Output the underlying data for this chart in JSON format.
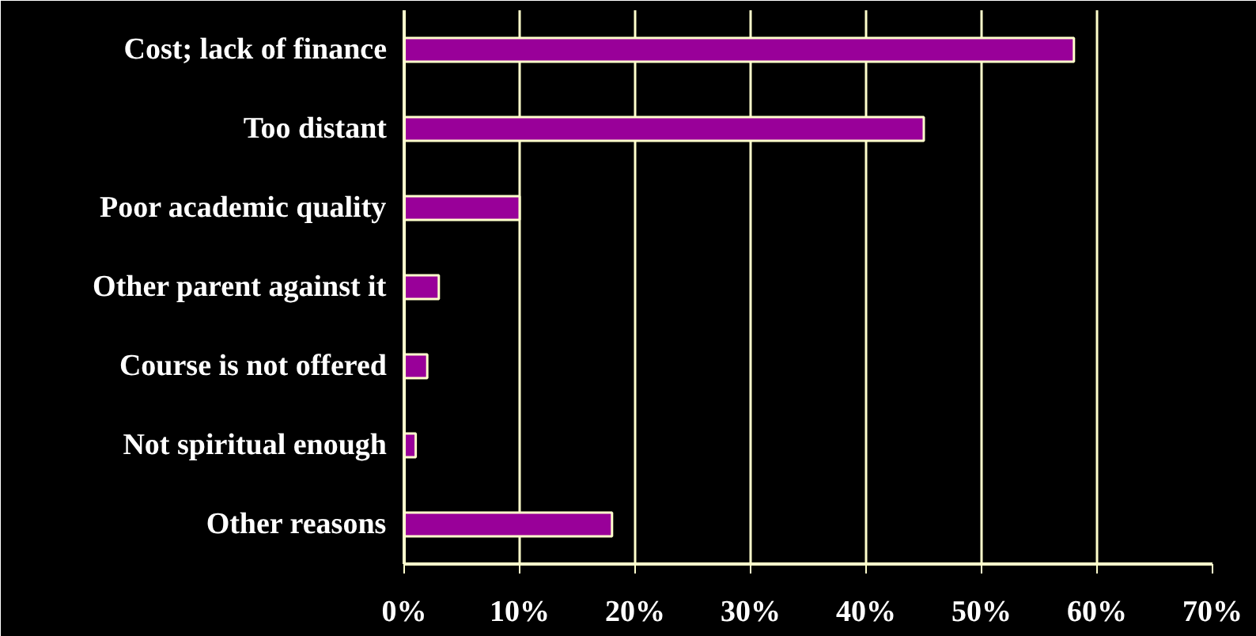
{
  "chart_data": {
    "type": "bar",
    "orientation": "horizontal",
    "categories": [
      "Cost; lack of finance",
      "Too distant",
      "Poor academic quality",
      "Other parent against it",
      "Course is not offered",
      "Not spiritual enough",
      "Other reasons"
    ],
    "values": [
      58,
      45,
      10,
      3,
      2,
      1,
      18
    ],
    "color": "#990099",
    "xlim": [
      0,
      70
    ],
    "xticks": [
      {
        "value": 0,
        "label": "0%"
      },
      {
        "value": 10,
        "label": "10%"
      },
      {
        "value": 20,
        "label": "20%"
      },
      {
        "value": 30,
        "label": "30%"
      },
      {
        "value": 40,
        "label": "40%"
      },
      {
        "value": 50,
        "label": "50%"
      },
      {
        "value": 60,
        "label": "60%"
      },
      {
        "value": 70,
        "label": "70%"
      }
    ],
    "grid": "x"
  }
}
